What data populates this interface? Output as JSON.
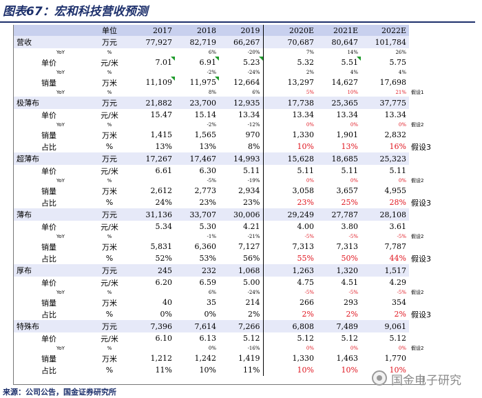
{
  "title": "图表67：宏和科技营收预测",
  "header": {
    "label": "单位",
    "years": [
      "2017",
      "2018",
      "2019",
      "2020E",
      "2021E",
      "2022E"
    ]
  },
  "sections": [
    {
      "name": "营收",
      "unit": "万元",
      "values": [
        "77,927",
        "82,719",
        "66,267",
        "70,687",
        "80,647",
        "101,784"
      ],
      "rows": [
        {
          "kind": "yoy",
          "label": "YoY",
          "unit": "%",
          "values": [
            "",
            "6%",
            "-20%",
            "7%",
            "14%",
            "26%"
          ],
          "red": [
            false,
            false,
            false,
            false,
            false,
            false
          ],
          "note": ""
        },
        {
          "kind": "main",
          "label": "单价",
          "unit": "元/米",
          "values": [
            "7.01",
            "6.91",
            "5.23",
            "5.32",
            "5.51",
            "5.75"
          ],
          "flags": [
            true,
            true,
            true,
            false,
            true,
            false
          ],
          "note": ""
        },
        {
          "kind": "yoy",
          "label": "YoY",
          "unit": "%",
          "values": [
            "",
            "-2%",
            "-24%",
            "2%",
            "4%",
            "4%"
          ],
          "red": [
            false,
            false,
            false,
            false,
            false,
            false
          ],
          "note": ""
        },
        {
          "kind": "main",
          "label": "销量",
          "unit": "万米",
          "values": [
            "11,109",
            "11,975",
            "12,664",
            "13,297",
            "14,627",
            "17,698"
          ],
          "flags": [
            true,
            true,
            false,
            false,
            false,
            false
          ],
          "note": ""
        },
        {
          "kind": "yoy",
          "label": "YoY",
          "unit": "%",
          "values": [
            "",
            "8%",
            "6%",
            "5%",
            "10%",
            "21%"
          ],
          "red": [
            false,
            false,
            false,
            true,
            true,
            true
          ],
          "note": "假设1"
        }
      ]
    },
    {
      "name": "极薄布",
      "unit": "万元",
      "values": [
        "21,882",
        "23,700",
        "12,935",
        "17,738",
        "25,365",
        "37,775"
      ],
      "rows": [
        {
          "kind": "main",
          "label": "单价",
          "unit": "元/米",
          "values": [
            "15.47",
            "15.14",
            "13.34",
            "13.34",
            "13.34",
            "13.34"
          ],
          "note": ""
        },
        {
          "kind": "yoy",
          "label": "YoY",
          "unit": "%",
          "values": [
            "",
            "-2%",
            "-12%",
            "0%",
            "0%",
            "0%"
          ],
          "red": [
            false,
            false,
            false,
            true,
            true,
            true
          ],
          "note": "假设2"
        },
        {
          "kind": "main",
          "label": "销量",
          "unit": "万米",
          "values": [
            "1,415",
            "1,565",
            "970",
            "1,330",
            "1,901",
            "2,832"
          ],
          "note": ""
        },
        {
          "kind": "pct",
          "label": "占比",
          "unit": "%",
          "values": [
            "13%",
            "13%",
            "8%",
            "10%",
            "13%",
            "16%"
          ],
          "red": [
            false,
            false,
            false,
            true,
            true,
            true
          ],
          "note": "假设3"
        }
      ]
    },
    {
      "name": "超薄布",
      "unit": "万元",
      "values": [
        "17,267",
        "17,467",
        "14,993",
        "15,628",
        "18,685",
        "25,323"
      ],
      "rows": [
        {
          "kind": "main",
          "label": "单价",
          "unit": "元/米",
          "values": [
            "6.61",
            "6.30",
            "5.11",
            "5.11",
            "5.11",
            "5.11"
          ],
          "note": ""
        },
        {
          "kind": "yoy",
          "label": "YoY",
          "unit": "%",
          "values": [
            "",
            "-5%",
            "-19%",
            "0%",
            "0%",
            "0%"
          ],
          "red": [
            false,
            false,
            false,
            true,
            true,
            true
          ],
          "note": "假设2"
        },
        {
          "kind": "main",
          "label": "销量",
          "unit": "万米",
          "values": [
            "2,612",
            "2,773",
            "2,934",
            "3,058",
            "3,657",
            "4,955"
          ],
          "note": ""
        },
        {
          "kind": "pct",
          "label": "占比",
          "unit": "%",
          "values": [
            "24%",
            "23%",
            "23%",
            "23%",
            "25%",
            "28%"
          ],
          "red": [
            false,
            false,
            false,
            true,
            true,
            true
          ],
          "note": "假设3"
        }
      ]
    },
    {
      "name": "薄布",
      "unit": "万元",
      "values": [
        "31,136",
        "33,707",
        "30,006",
        "29,249",
        "27,787",
        "28,108"
      ],
      "rows": [
        {
          "kind": "main",
          "label": "单价",
          "unit": "元/米",
          "values": [
            "5.34",
            "5.30",
            "4.21",
            "4.00",
            "3.80",
            "3.61"
          ],
          "note": ""
        },
        {
          "kind": "yoy",
          "label": "YoY",
          "unit": "%",
          "values": [
            "",
            "-1%",
            "-21%",
            "-5%",
            "-5%",
            "-5%"
          ],
          "red": [
            false,
            false,
            false,
            true,
            true,
            true
          ],
          "note": "假设2"
        },
        {
          "kind": "main",
          "label": "销量",
          "unit": "万米",
          "values": [
            "5,831",
            "6,360",
            "7,127",
            "7,313",
            "7,313",
            "7,787"
          ],
          "note": ""
        },
        {
          "kind": "pct",
          "label": "占比",
          "unit": "%",
          "values": [
            "52%",
            "53%",
            "56%",
            "55%",
            "50%",
            "44%"
          ],
          "red": [
            false,
            false,
            false,
            true,
            true,
            true
          ],
          "note": "假设3"
        }
      ]
    },
    {
      "name": "厚布",
      "unit": "万元",
      "values": [
        "245",
        "232",
        "1,068",
        "1,263",
        "1,320",
        "1,517"
      ],
      "rows": [
        {
          "kind": "main",
          "label": "单价",
          "unit": "元/米",
          "values": [
            "6.20",
            "6.59",
            "5.00",
            "4.75",
            "4.51",
            "4.29"
          ],
          "note": ""
        },
        {
          "kind": "yoy",
          "label": "YoY",
          "unit": "%",
          "values": [
            "",
            "6%",
            "-24%",
            "-5%",
            "-5%",
            "-5%"
          ],
          "red": [
            false,
            false,
            false,
            true,
            true,
            true
          ],
          "note": "假设2"
        },
        {
          "kind": "main",
          "label": "销量",
          "unit": "万米",
          "values": [
            "40",
            "35",
            "214",
            "266",
            "293",
            "354"
          ],
          "note": ""
        },
        {
          "kind": "pct",
          "label": "占比",
          "unit": "%",
          "values": [
            "0%",
            "0%",
            "2%",
            "2%",
            "2%",
            "2%"
          ],
          "red": [
            false,
            false,
            false,
            true,
            true,
            true
          ],
          "note": "假设3"
        }
      ]
    },
    {
      "name": "特殊布",
      "unit": "万元",
      "values": [
        "7,396",
        "7,614",
        "7,266",
        "6,808",
        "7,489",
        "9,061"
      ],
      "rows": [
        {
          "kind": "main",
          "label": "单价",
          "unit": "元/米",
          "values": [
            "6.10",
            "6.13",
            "5.12",
            "5.12",
            "5.12",
            "5.12"
          ],
          "note": ""
        },
        {
          "kind": "yoy",
          "label": "YoY",
          "unit": "%",
          "values": [
            "",
            "0%",
            "-16%",
            "0%",
            "0%",
            "0%"
          ],
          "red": [
            false,
            false,
            false,
            true,
            true,
            true
          ],
          "note": "假设2"
        },
        {
          "kind": "main",
          "label": "销量",
          "unit": "万米",
          "values": [
            "1,212",
            "1,242",
            "1,419",
            "1,330",
            "1,463",
            "1,770"
          ],
          "note": ""
        },
        {
          "kind": "pct",
          "label": "占比",
          "unit": "%",
          "values": [
            "11%",
            "10%",
            "11%",
            "10%",
            "10%",
            "10%"
          ],
          "red": [
            false,
            false,
            false,
            true,
            true,
            true
          ],
          "note": ""
        }
      ]
    }
  ],
  "source": "来源：公司公告，国金证券研究所",
  "watermark": "国金电子研究"
}
